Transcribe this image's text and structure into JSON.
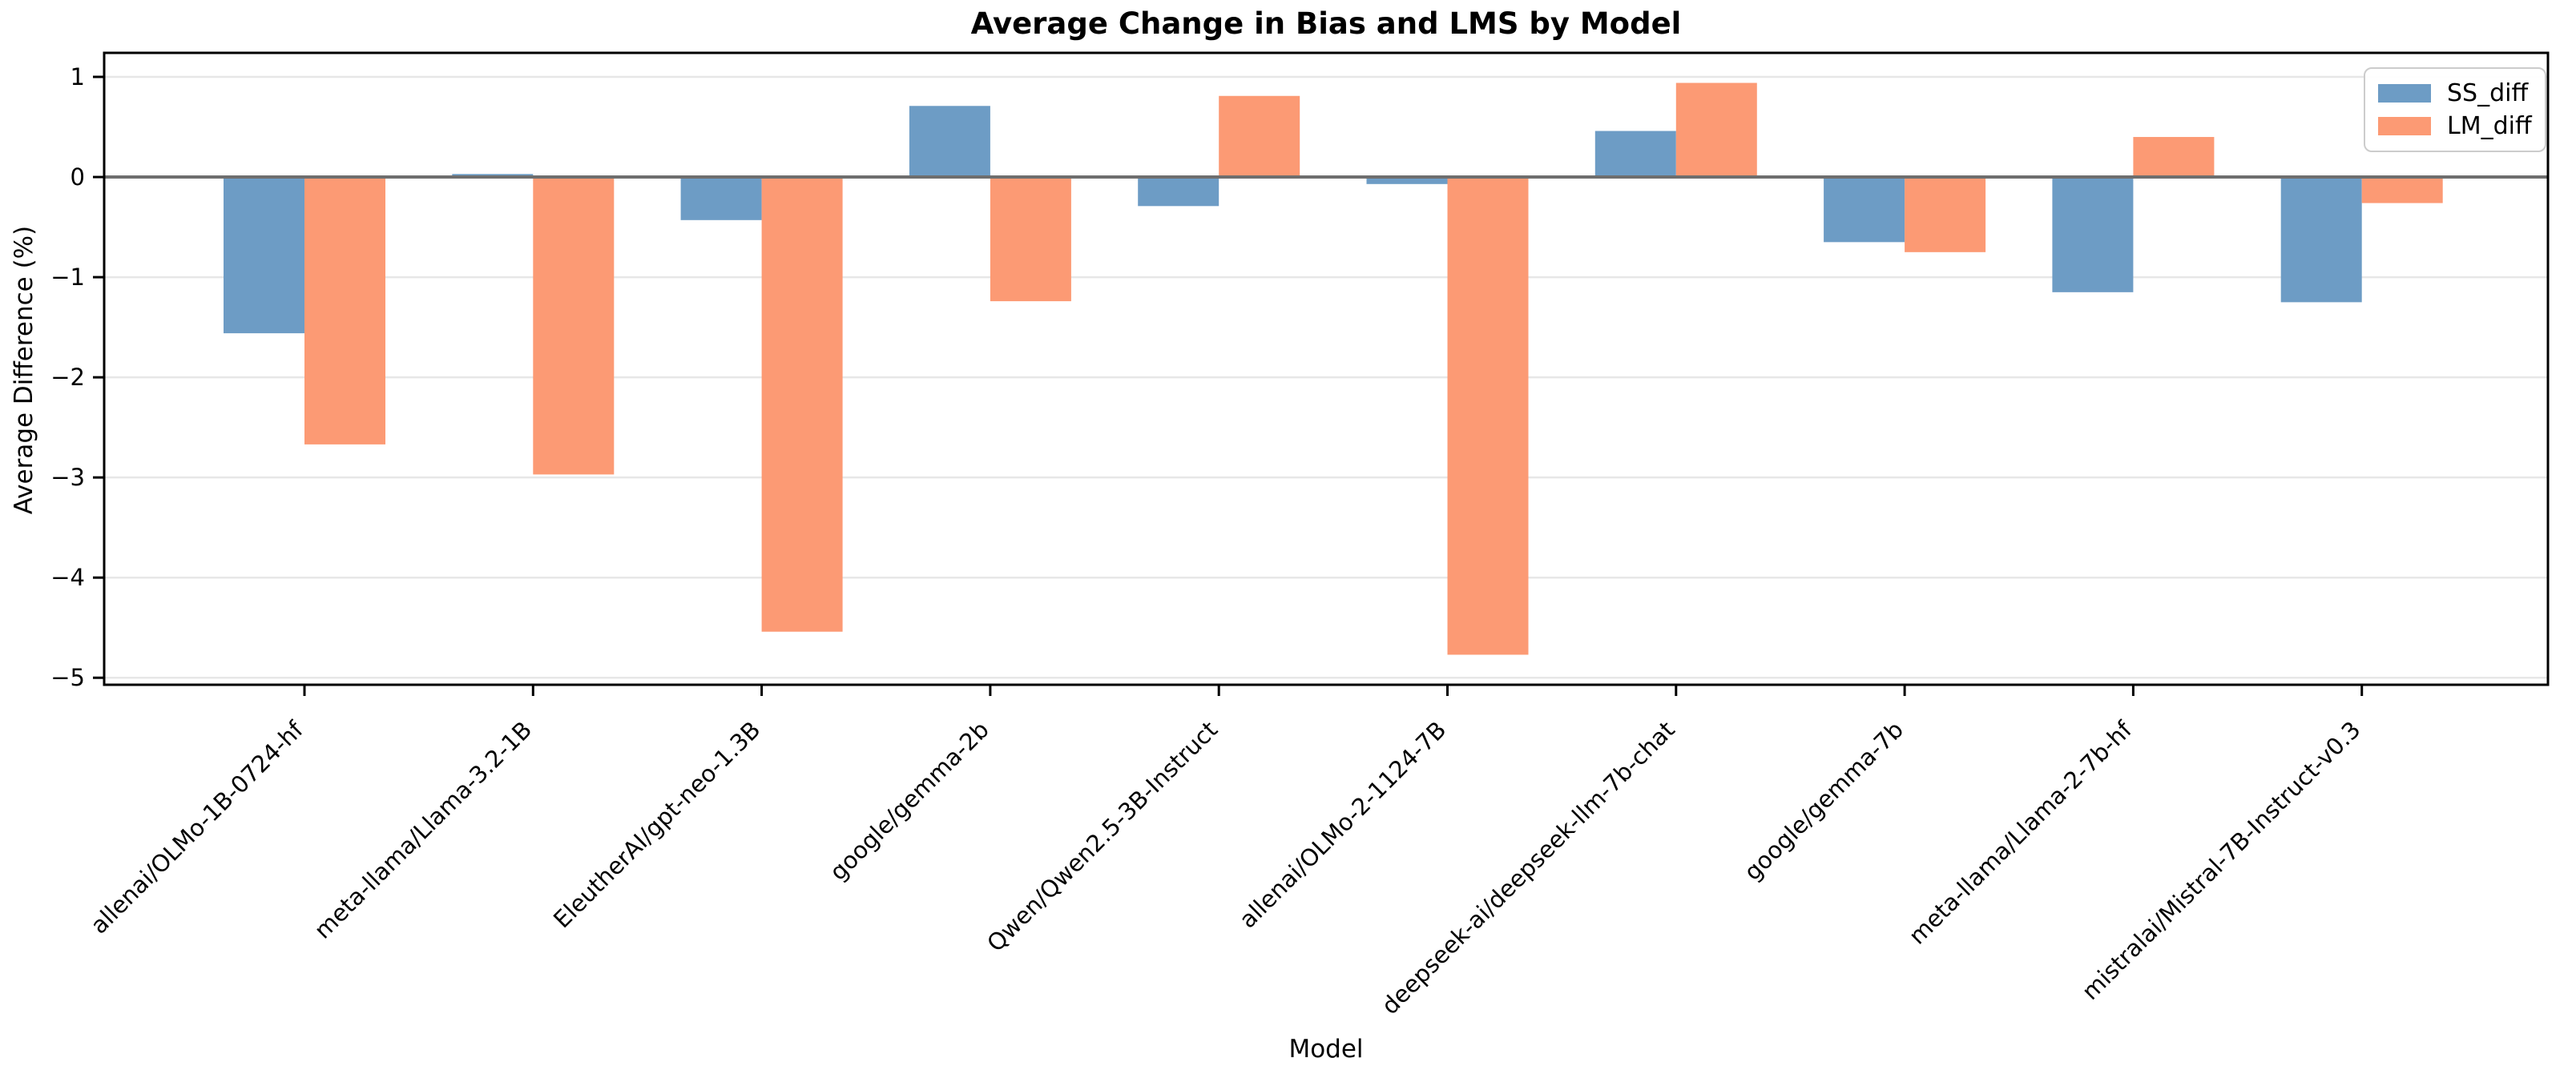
{
  "chart_data": {
    "type": "bar",
    "title": "Average Change in Bias and LMS by Model",
    "xlabel": "Model",
    "ylabel": "Average Difference (%)",
    "categories": [
      "allenai/OLMo-1B-0724-hf",
      "meta-llama/Llama-3.2-1B",
      "EleutherAI/gpt-neo-1.3B",
      "google/gemma-2b",
      "Qwen/Qwen2.5-3B-Instruct",
      "allenai/OLMo-2-1124-7B",
      "deepseek-ai/deepseek-llm-7b-chat",
      "google/gemma-7b",
      "meta-llama/Llama-2-7b-hf",
      "mistralai/Mistral-7B-Instruct-v0.3"
    ],
    "series": [
      {
        "name": "SS_diff",
        "color": "#6d9cc5",
        "values": [
          -1.56,
          0.03,
          -0.43,
          0.71,
          -0.29,
          -0.07,
          0.46,
          -0.65,
          -1.15,
          -1.25
        ]
      },
      {
        "name": "LM_diff",
        "color": "#fc9a74",
        "values": [
          -2.67,
          -2.97,
          -4.54,
          -1.24,
          0.81,
          -4.77,
          0.94,
          -0.75,
          0.4,
          -0.26
        ]
      }
    ],
    "yticks": [
      1,
      0,
      -1,
      -2,
      -3,
      -4,
      -5
    ],
    "ylim": [
      -5.07,
      1.24
    ],
    "grid": true,
    "zero_line": true,
    "legend_position": "upper right",
    "colors": {
      "grid": "#e7e7e7",
      "zero_line": "#6e6e6e",
      "spine": "#000000",
      "text": "#000000"
    }
  }
}
